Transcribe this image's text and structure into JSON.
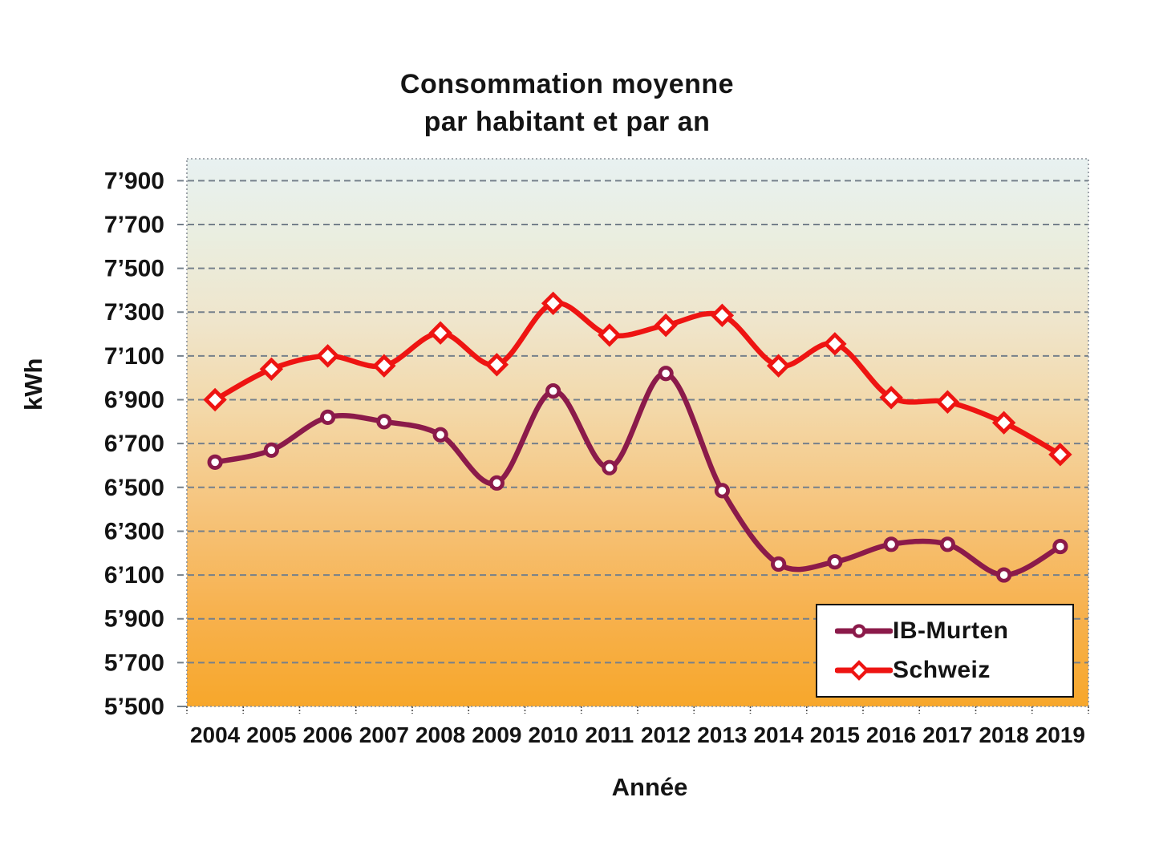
{
  "chart_data": {
    "type": "line",
    "title_lines": [
      "Consommation moyenne",
      "par habitant et par an"
    ],
    "xlabel": "Année",
    "ylabel": "kWh",
    "categories": [
      "2004",
      "2005",
      "2006",
      "2007",
      "2008",
      "2009",
      "2010",
      "2011",
      "2012",
      "2013",
      "2014",
      "2015",
      "2016",
      "2017",
      "2018",
      "2019"
    ],
    "series": [
      {
        "name": "IB-Murten",
        "color": "#8B1A4A",
        "marker": "circle",
        "values": [
          6615,
          6670,
          6820,
          6800,
          6740,
          6520,
          6940,
          6590,
          7020,
          6485,
          6150,
          6160,
          6240,
          6240,
          6100,
          6230
        ]
      },
      {
        "name": "Schweiz",
        "color": "#EE1412",
        "marker": "diamond",
        "values": [
          6900,
          7040,
          7100,
          7055,
          7205,
          7060,
          7340,
          7195,
          7240,
          7285,
          7055,
          7155,
          6910,
          6890,
          6795,
          6650
        ]
      }
    ],
    "ylim": [
      5500,
      8000
    ],
    "y_tick_step": 200,
    "y_tick_labels": [
      "5’500",
      "5’700",
      "5’900",
      "6’100",
      "6’300",
      "6’500",
      "6’700",
      "6’900",
      "7’100",
      "7’300",
      "7’500",
      "7’700",
      "7’900"
    ],
    "grid": true,
    "smoothed_lines": true,
    "legend_position": "bottom-right",
    "colors": {
      "gridline": "#75808B",
      "frame": "#8A9199",
      "tick": "#4D4D4D",
      "plot_gradient_stops": [
        [
          0.0,
          "#E8F1F1"
        ],
        [
          0.14,
          "#EAEEE0"
        ],
        [
          0.3,
          "#EFE5CB"
        ],
        [
          0.46,
          "#F3D8A8"
        ],
        [
          0.64,
          "#F6C47C"
        ],
        [
          0.82,
          "#F7B250"
        ],
        [
          1.0,
          "#F7A72B"
        ]
      ]
    }
  }
}
